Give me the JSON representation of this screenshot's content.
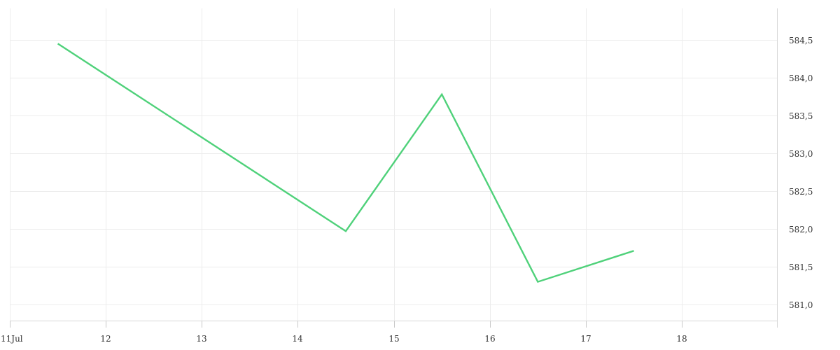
{
  "chart_data": {
    "type": "line",
    "x_axis": {
      "type": "time",
      "min": "2024-07-11",
      "max": "2024-07-19",
      "ticks": [
        {
          "value": "2024-07-11",
          "label": "11Jul"
        },
        {
          "value": "2024-07-12",
          "label": "12"
        },
        {
          "value": "2024-07-13",
          "label": "13"
        },
        {
          "value": "2024-07-14",
          "label": "14"
        },
        {
          "value": "2024-07-15",
          "label": "15"
        },
        {
          "value": "2024-07-16",
          "label": "16"
        },
        {
          "value": "2024-07-17",
          "label": "17"
        },
        {
          "value": "2024-07-18",
          "label": "18"
        }
      ]
    },
    "y_axis": {
      "position": "right",
      "min": 580.8,
      "max": 584.9,
      "ticks": [
        {
          "value": 581.0,
          "label": "581,0"
        },
        {
          "value": 581.5,
          "label": "581,5"
        },
        {
          "value": 582.0,
          "label": "582,0"
        },
        {
          "value": 582.5,
          "label": "582,5"
        },
        {
          "value": 583.0,
          "label": "583,0"
        },
        {
          "value": 583.5,
          "label": "583,5"
        },
        {
          "value": 584.0,
          "label": "584,0"
        },
        {
          "value": 584.5,
          "label": "584,5"
        }
      ]
    },
    "grid": true,
    "series": [
      {
        "color": "#4fd17a",
        "points": [
          {
            "x": "2024-07-11 12:00",
            "y": 584.45
          },
          {
            "x": "2024-07-14 12:00",
            "y": 581.97
          },
          {
            "x": "2024-07-15 12:00",
            "y": 583.78
          },
          {
            "x": "2024-07-16 12:00",
            "y": 581.3
          },
          {
            "x": "2024-07-17 12:00",
            "y": 581.71
          }
        ]
      }
    ]
  }
}
